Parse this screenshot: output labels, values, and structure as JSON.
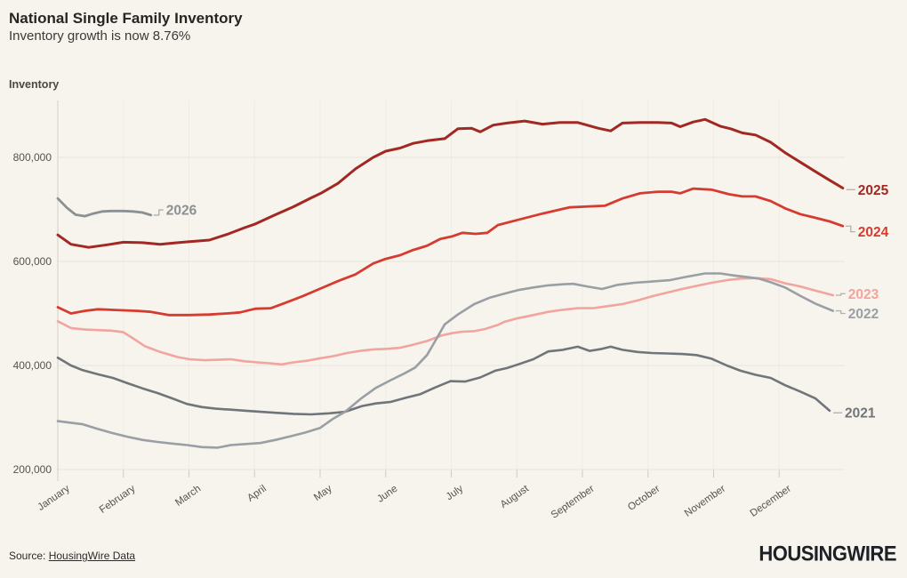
{
  "header": {
    "title": "National Single Family Inventory",
    "subtitle": "Inventory growth is now 8.76%"
  },
  "footer": {
    "source_prefix": "Source: ",
    "source_link": "HousingWire Data",
    "logo": "HOUSINGWIRE"
  },
  "chart_data": {
    "type": "line",
    "title": "National Single Family Inventory",
    "ylabel": "Inventory",
    "xlabel": "",
    "grid": true,
    "legend_position": "right-end-labels",
    "ylim": [
      185000,
      900000
    ],
    "x_ticks": [
      "January",
      "February",
      "March",
      "April",
      "May",
      "June",
      "July",
      "August",
      "September",
      "October",
      "November",
      "December"
    ],
    "y_ticks": [
      {
        "value": 200000,
        "label": "200,000"
      },
      {
        "value": 400000,
        "label": "400,000"
      },
      {
        "value": 600000,
        "label": "600,000"
      },
      {
        "value": 800000,
        "label": "800,000"
      }
    ],
    "x_unit": "month_fraction_0_to_12",
    "series": [
      {
        "name": "2021",
        "label": "2021",
        "color": "#70757a",
        "width": 2.6,
        "connector": "dash",
        "label_value": 309000,
        "points": [
          [
            0,
            415000
          ],
          [
            0.2,
            400000
          ],
          [
            0.38,
            391000
          ],
          [
            0.61,
            383000
          ],
          [
            0.84,
            376000
          ],
          [
            1.06,
            366000
          ],
          [
            1.29,
            356000
          ],
          [
            1.52,
            347000
          ],
          [
            1.74,
            337000
          ],
          [
            1.97,
            326000
          ],
          [
            2.2,
            320000
          ],
          [
            2.41,
            317000
          ],
          [
            2.64,
            315000
          ],
          [
            2.87,
            313000
          ],
          [
            3.09,
            311000
          ],
          [
            3.32,
            309000
          ],
          [
            3.59,
            307000
          ],
          [
            3.86,
            306000
          ],
          [
            4.14,
            308000
          ],
          [
            4.38,
            311000
          ],
          [
            4.64,
            322000
          ],
          [
            4.85,
            327000
          ],
          [
            5.08,
            330000
          ],
          [
            5.31,
            338000
          ],
          [
            5.53,
            345000
          ],
          [
            5.76,
            358000
          ],
          [
            5.99,
            370000
          ],
          [
            6.21,
            369000
          ],
          [
            6.44,
            377000
          ],
          [
            6.67,
            390000
          ],
          [
            6.85,
            395000
          ],
          [
            7.02,
            402000
          ],
          [
            7.25,
            412000
          ],
          [
            7.48,
            427000
          ],
          [
            7.7,
            430000
          ],
          [
            7.93,
            436000
          ],
          [
            8.11,
            428000
          ],
          [
            8.3,
            432000
          ],
          [
            8.43,
            436000
          ],
          [
            8.61,
            430000
          ],
          [
            8.84,
            426000
          ],
          [
            9.06,
            424000
          ],
          [
            9.29,
            423000
          ],
          [
            9.52,
            422000
          ],
          [
            9.74,
            420000
          ],
          [
            9.97,
            413000
          ],
          [
            10.2,
            400000
          ],
          [
            10.41,
            390000
          ],
          [
            10.64,
            382000
          ],
          [
            10.87,
            376000
          ],
          [
            11.09,
            362000
          ],
          [
            11.32,
            350000
          ],
          [
            11.55,
            337000
          ],
          [
            11.77,
            313000
          ]
        ]
      },
      {
        "name": "2023",
        "label": "2023",
        "color": "#f2a49e",
        "width": 2.6,
        "connector": "step",
        "label_value": 538000,
        "points": [
          [
            0,
            485000
          ],
          [
            0.2,
            472000
          ],
          [
            0.41,
            469000
          ],
          [
            0.61,
            468000
          ],
          [
            0.81,
            467000
          ],
          [
            1,
            464000
          ],
          [
            1.15,
            452000
          ],
          [
            1.33,
            437000
          ],
          [
            1.56,
            426000
          ],
          [
            1.83,
            416000
          ],
          [
            2.01,
            412000
          ],
          [
            2.24,
            410000
          ],
          [
            2.44,
            411000
          ],
          [
            2.64,
            412000
          ],
          [
            2.85,
            408000
          ],
          [
            3.05,
            406000
          ],
          [
            3.25,
            404000
          ],
          [
            3.42,
            402000
          ],
          [
            3.59,
            406000
          ],
          [
            3.8,
            409000
          ],
          [
            4.01,
            414000
          ],
          [
            4.2,
            418000
          ],
          [
            4.41,
            424000
          ],
          [
            4.61,
            428000
          ],
          [
            4.81,
            431000
          ],
          [
            5.02,
            432000
          ],
          [
            5.22,
            434000
          ],
          [
            5.42,
            440000
          ],
          [
            5.63,
            447000
          ],
          [
            5.86,
            458000
          ],
          [
            6.01,
            462000
          ],
          [
            6.17,
            465000
          ],
          [
            6.35,
            466000
          ],
          [
            6.51,
            470000
          ],
          [
            6.71,
            478000
          ],
          [
            6.81,
            484000
          ],
          [
            7.02,
            491000
          ],
          [
            7.25,
            497000
          ],
          [
            7.48,
            503000
          ],
          [
            7.7,
            507000
          ],
          [
            7.93,
            510000
          ],
          [
            8.16,
            510000
          ],
          [
            8.38,
            514000
          ],
          [
            8.61,
            518000
          ],
          [
            8.84,
            525000
          ],
          [
            9.06,
            533000
          ],
          [
            9.29,
            540000
          ],
          [
            9.52,
            547000
          ],
          [
            9.74,
            553000
          ],
          [
            9.97,
            559000
          ],
          [
            10.2,
            564000
          ],
          [
            10.41,
            567000
          ],
          [
            10.64,
            568000
          ],
          [
            10.87,
            566000
          ],
          [
            11.09,
            558000
          ],
          [
            11.32,
            552000
          ],
          [
            11.55,
            544000
          ],
          [
            11.82,
            535000
          ]
        ]
      },
      {
        "name": "2022",
        "label": "2022",
        "color": "#999fa4",
        "width": 2.6,
        "connector": "step",
        "label_value": 500000,
        "points": [
          [
            0,
            293000
          ],
          [
            0.2,
            290000
          ],
          [
            0.38,
            287000
          ],
          [
            0.61,
            278000
          ],
          [
            0.84,
            270000
          ],
          [
            1.06,
            263000
          ],
          [
            1.29,
            257000
          ],
          [
            1.52,
            253000
          ],
          [
            1.74,
            250000
          ],
          [
            1.97,
            247000
          ],
          [
            2.2,
            243000
          ],
          [
            2.44,
            242000
          ],
          [
            2.64,
            247000
          ],
          [
            2.87,
            249000
          ],
          [
            3.09,
            251000
          ],
          [
            3.32,
            257000
          ],
          [
            3.55,
            264000
          ],
          [
            3.77,
            271000
          ],
          [
            4,
            280000
          ],
          [
            4.18,
            296000
          ],
          [
            4.38,
            311000
          ],
          [
            4.64,
            338000
          ],
          [
            4.85,
            357000
          ],
          [
            5.08,
            372000
          ],
          [
            5.29,
            385000
          ],
          [
            5.45,
            396000
          ],
          [
            5.63,
            420000
          ],
          [
            5.76,
            448000
          ],
          [
            5.9,
            479000
          ],
          [
            6.1,
            498000
          ],
          [
            6.35,
            518000
          ],
          [
            6.58,
            530000
          ],
          [
            6.81,
            538000
          ],
          [
            7.02,
            545000
          ],
          [
            7.25,
            550000
          ],
          [
            7.48,
            554000
          ],
          [
            7.7,
            556000
          ],
          [
            7.86,
            557000
          ],
          [
            8.07,
            552000
          ],
          [
            8.3,
            547000
          ],
          [
            8.54,
            555000
          ],
          [
            8.79,
            559000
          ],
          [
            9.02,
            561000
          ],
          [
            9.33,
            564000
          ],
          [
            9.56,
            570000
          ],
          [
            9.87,
            577000
          ],
          [
            10.1,
            577000
          ],
          [
            10.31,
            573000
          ],
          [
            10.51,
            570000
          ],
          [
            10.69,
            567000
          ],
          [
            10.87,
            560000
          ],
          [
            11.09,
            550000
          ],
          [
            11.32,
            534000
          ],
          [
            11.55,
            519000
          ],
          [
            11.82,
            505000
          ]
        ]
      },
      {
        "name": "2024",
        "label": "2024",
        "color": "#d63b30",
        "width": 2.8,
        "connector": "step",
        "label_value": 657000,
        "points": [
          [
            0,
            512000
          ],
          [
            0.2,
            500000
          ],
          [
            0.41,
            505000
          ],
          [
            0.61,
            508000
          ],
          [
            0.81,
            507000
          ],
          [
            1,
            506000
          ],
          [
            1.22,
            505000
          ],
          [
            1.42,
            503000
          ],
          [
            1.69,
            497000
          ],
          [
            2.01,
            497000
          ],
          [
            2.31,
            498000
          ],
          [
            2.58,
            500000
          ],
          [
            2.78,
            502000
          ],
          [
            3.01,
            509000
          ],
          [
            3.25,
            510000
          ],
          [
            3.46,
            520000
          ],
          [
            3.73,
            533000
          ],
          [
            4.01,
            548000
          ],
          [
            4.27,
            562000
          ],
          [
            4.54,
            575000
          ],
          [
            4.81,
            596000
          ],
          [
            5,
            605000
          ],
          [
            5.22,
            612000
          ],
          [
            5.42,
            622000
          ],
          [
            5.63,
            630000
          ],
          [
            5.83,
            643000
          ],
          [
            6.01,
            648000
          ],
          [
            6.17,
            655000
          ],
          [
            6.37,
            653000
          ],
          [
            6.55,
            655000
          ],
          [
            6.71,
            670000
          ],
          [
            7.02,
            680000
          ],
          [
            7.39,
            692000
          ],
          [
            7.8,
            704000
          ],
          [
            8.14,
            706000
          ],
          [
            8.34,
            707000
          ],
          [
            8.61,
            721000
          ],
          [
            8.88,
            731000
          ],
          [
            9.15,
            734000
          ],
          [
            9.36,
            734000
          ],
          [
            9.49,
            731000
          ],
          [
            9.69,
            740000
          ],
          [
            9.97,
            738000
          ],
          [
            10.24,
            729000
          ],
          [
            10.44,
            725000
          ],
          [
            10.64,
            725000
          ],
          [
            10.87,
            716000
          ],
          [
            11.09,
            702000
          ],
          [
            11.32,
            691000
          ],
          [
            11.55,
            684000
          ],
          [
            11.77,
            677000
          ],
          [
            11.97,
            668000
          ]
        ]
      },
      {
        "name": "2025",
        "label": "2025",
        "color": "#a22823",
        "width": 3,
        "connector": "dash",
        "label_value": 738000,
        "points": [
          [
            0,
            651000
          ],
          [
            0.2,
            633000
          ],
          [
            0.47,
            627000
          ],
          [
            0.75,
            632000
          ],
          [
            1,
            637000
          ],
          [
            1.29,
            636000
          ],
          [
            1.56,
            633000
          ],
          [
            1.83,
            636000
          ],
          [
            2.01,
            638000
          ],
          [
            2.31,
            641000
          ],
          [
            2.58,
            652000
          ],
          [
            2.85,
            665000
          ],
          [
            3.01,
            672000
          ],
          [
            3.32,
            690000
          ],
          [
            3.59,
            705000
          ],
          [
            3.86,
            722000
          ],
          [
            4.01,
            731000
          ],
          [
            4.27,
            750000
          ],
          [
            4.54,
            778000
          ],
          [
            4.81,
            800000
          ],
          [
            5,
            812000
          ],
          [
            5.22,
            818000
          ],
          [
            5.42,
            827000
          ],
          [
            5.63,
            832000
          ],
          [
            5.9,
            836000
          ],
          [
            6.1,
            855000
          ],
          [
            6.31,
            856000
          ],
          [
            6.44,
            849000
          ],
          [
            6.64,
            862000
          ],
          [
            6.85,
            866000
          ],
          [
            7.12,
            870000
          ],
          [
            7.39,
            864000
          ],
          [
            7.66,
            867000
          ],
          [
            7.93,
            867000
          ],
          [
            8.24,
            856000
          ],
          [
            8.43,
            851000
          ],
          [
            8.61,
            866000
          ],
          [
            8.88,
            867000
          ],
          [
            9.15,
            867000
          ],
          [
            9.36,
            866000
          ],
          [
            9.49,
            859000
          ],
          [
            9.69,
            868000
          ],
          [
            9.87,
            873000
          ],
          [
            10.1,
            860000
          ],
          [
            10.26,
            855000
          ],
          [
            10.44,
            847000
          ],
          [
            10.64,
            843000
          ],
          [
            10.87,
            829000
          ],
          [
            11.09,
            809000
          ],
          [
            11.32,
            791000
          ],
          [
            11.55,
            773000
          ],
          [
            11.77,
            756000
          ],
          [
            11.97,
            741000
          ]
        ]
      },
      {
        "name": "2026",
        "label": "2026",
        "color": "#8d9093",
        "width": 2.8,
        "connector": "step",
        "label_value": 699000,
        "points": [
          [
            0,
            721000
          ],
          [
            0.14,
            703000
          ],
          [
            0.27,
            690000
          ],
          [
            0.41,
            687000
          ],
          [
            0.54,
            692000
          ],
          [
            0.68,
            696000
          ],
          [
            0.81,
            697000
          ],
          [
            1,
            697000
          ],
          [
            1.15,
            696000
          ],
          [
            1.29,
            694000
          ],
          [
            1.42,
            689000
          ]
        ]
      }
    ]
  }
}
